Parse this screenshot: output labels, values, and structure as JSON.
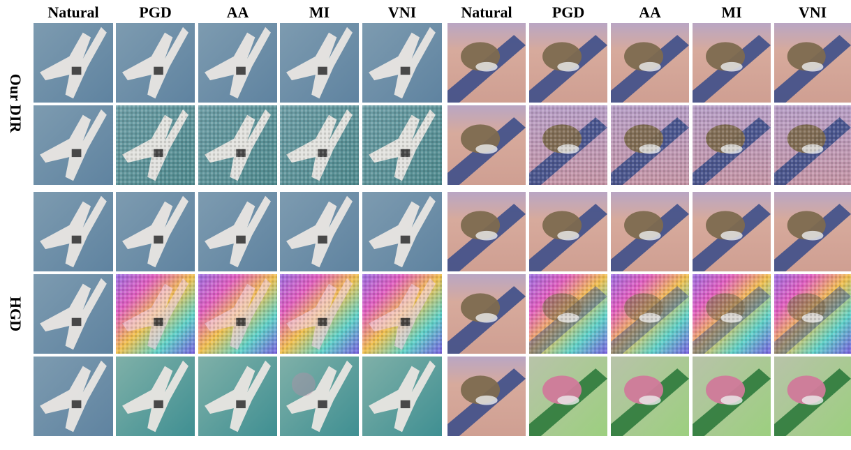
{
  "column_headers": [
    "Natural",
    "PGD",
    "AA",
    "MI",
    "VNI",
    "Natural",
    "PGD",
    "AA",
    "MI",
    "VNI"
  ],
  "row_groups": [
    {
      "label": "Our DIR"
    },
    {
      "label": "HGD"
    }
  ]
}
